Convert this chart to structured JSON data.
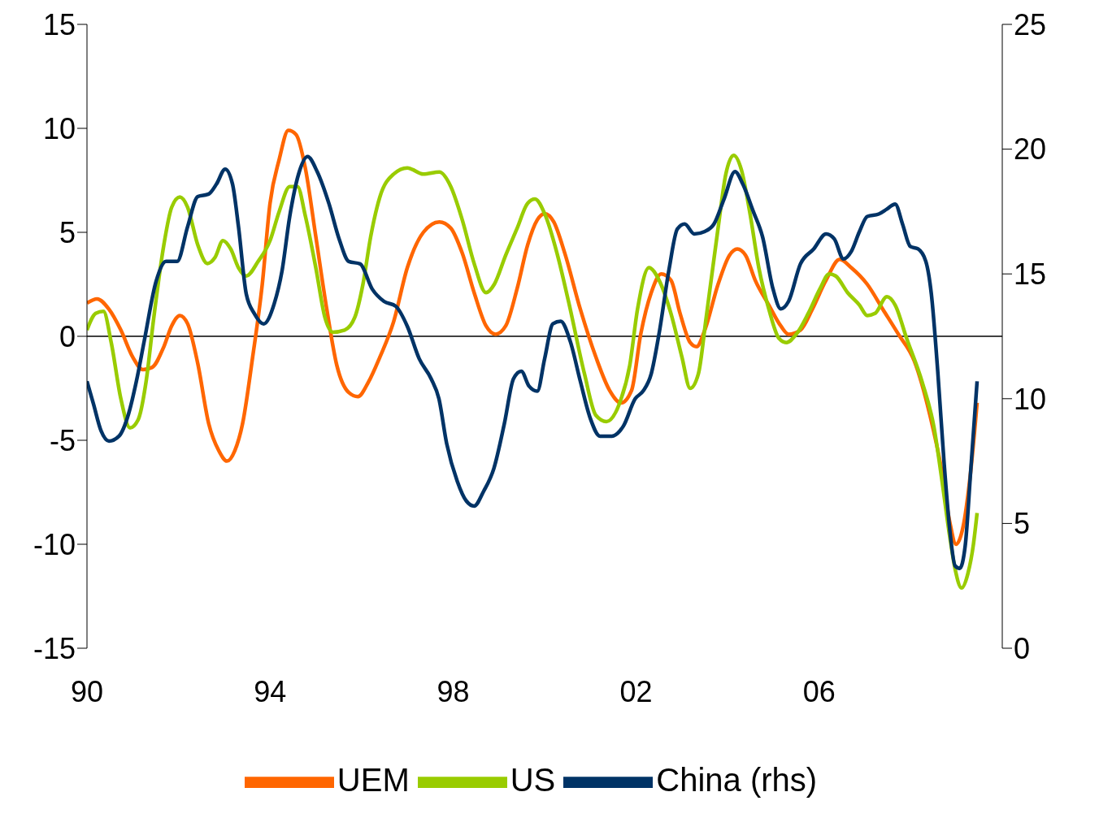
{
  "chart_data": {
    "type": "line",
    "xlim": [
      1990,
      2010
    ],
    "xticks": [
      {
        "value": 1990,
        "label": "90"
      },
      {
        "value": 1994,
        "label": "94"
      },
      {
        "value": 1998,
        "label": "98"
      },
      {
        "value": 2002,
        "label": "02"
      },
      {
        "value": 2006,
        "label": "06"
      }
    ],
    "ylim": [
      -15,
      15
    ],
    "yticks": [
      -15,
      -10,
      -5,
      0,
      5,
      10,
      15
    ],
    "y2lim": [
      0,
      25
    ],
    "y2ticks": [
      0,
      5,
      10,
      15,
      20,
      25
    ],
    "legend": "bottom",
    "marker": "none",
    "line_style": "solid",
    "ref_lines": [
      {
        "axis": "y",
        "value": 0,
        "color": "#000000"
      }
    ],
    "series": [
      {
        "name": "UEM",
        "color": "#ff6600",
        "x": [
          1990.0,
          1990.22,
          1990.48,
          1990.74,
          1991.0,
          1991.22,
          1991.42,
          1991.68,
          1991.85,
          1992.03,
          1992.2,
          1992.42,
          1992.66,
          1992.88,
          1993.06,
          1993.23,
          1993.4,
          1993.62,
          1993.83,
          1994.0,
          1994.2,
          1994.4,
          1994.57,
          1994.77,
          1995.0,
          1995.24,
          1995.46,
          1995.72,
          1995.92,
          1996.15,
          1996.4,
          1996.7,
          1997.0,
          1997.35,
          1997.7,
          1997.95,
          1998.2,
          1998.46,
          1998.72,
          1998.93,
          1999.15,
          1999.4,
          1999.63,
          1999.84,
          2000.0,
          2000.2,
          2000.44,
          2000.78,
          2001.12,
          2001.42,
          2001.67,
          2001.9,
          2002.1,
          2002.33,
          2002.55,
          2002.76,
          2002.96,
          2003.18,
          2003.32,
          2003.5,
          2003.79,
          2004.04,
          2004.21,
          2004.39,
          2004.6,
          2004.9,
          2005.16,
          2005.33,
          2005.59,
          2005.85,
          2006.15,
          2006.45,
          2006.7,
          2007.05,
          2007.39,
          2007.73,
          2008.08,
          2008.42,
          2008.68,
          2008.85,
          2008.99,
          2009.14,
          2009.31,
          2009.45
        ],
        "values": [
          1.6,
          1.8,
          1.3,
          0.3,
          -1.0,
          -1.6,
          -1.5,
          -0.5,
          0.5,
          1.0,
          0.6,
          -1.3,
          -4.2,
          -5.5,
          -6.0,
          -5.5,
          -4.2,
          -1.0,
          2.5,
          6.4,
          8.5,
          9.9,
          9.7,
          8.1,
          4.8,
          1.3,
          -1.4,
          -2.7,
          -2.9,
          -2.2,
          -1.0,
          0.7,
          3.3,
          5.0,
          5.5,
          5.2,
          4.0,
          2.1,
          0.5,
          0.1,
          0.5,
          2.3,
          4.4,
          5.6,
          5.9,
          5.5,
          4.0,
          1.3,
          -1.0,
          -2.6,
          -3.2,
          -2.6,
          0.1,
          2.1,
          3.0,
          2.7,
          1.1,
          -0.3,
          -0.5,
          0.3,
          2.5,
          3.9,
          4.2,
          3.9,
          2.7,
          1.5,
          0.5,
          0.1,
          0.3,
          1.3,
          2.7,
          3.7,
          3.3,
          2.5,
          1.3,
          0.1,
          -1.2,
          -3.8,
          -6.5,
          -8.9,
          -10.0,
          -9.2,
          -6.5,
          -3.2
        ]
      },
      {
        "name": "US",
        "color": "#99cc00",
        "x": [
          1990.0,
          1990.19,
          1990.36,
          1990.53,
          1990.74,
          1990.94,
          1991.12,
          1991.29,
          1991.46,
          1991.68,
          1991.85,
          1992.03,
          1992.2,
          1992.42,
          1992.63,
          1992.8,
          1992.97,
          1993.14,
          1993.31,
          1993.48,
          1993.74,
          1994.0,
          1994.2,
          1994.43,
          1994.6,
          1994.77,
          1995.0,
          1995.2,
          1995.37,
          1995.63,
          1995.85,
          1996.03,
          1996.2,
          1996.4,
          1996.7,
          1997.0,
          1997.35,
          1997.7,
          1997.95,
          1998.2,
          1998.46,
          1998.72,
          1998.9,
          1999.15,
          1999.4,
          1999.63,
          1999.79,
          2000.0,
          2000.27,
          2000.52,
          2000.87,
          2001.12,
          2001.35,
          2001.64,
          2001.86,
          2002.03,
          2002.28,
          2002.5,
          2002.76,
          2003.0,
          2003.18,
          2003.36,
          2003.53,
          2003.79,
          2003.96,
          2004.13,
          2004.3,
          2004.48,
          2004.68,
          2004.9,
          2005.12,
          2005.28,
          2005.5,
          2005.76,
          2006.02,
          2006.22,
          2006.36,
          2006.62,
          2006.88,
          2007.05,
          2007.22,
          2007.48,
          2007.66,
          2007.91,
          2008.25,
          2008.51,
          2008.68,
          2008.85,
          2008.97,
          2009.11,
          2009.25,
          2009.37,
          2009.45
        ],
        "values": [
          0.3,
          1.1,
          1.2,
          -0.3,
          -3.0,
          -4.4,
          -4.0,
          -2.2,
          0.9,
          4.4,
          6.2,
          6.7,
          6.2,
          4.4,
          3.5,
          3.8,
          4.6,
          4.2,
          3.3,
          2.9,
          3.6,
          4.6,
          6.0,
          7.2,
          7.2,
          5.8,
          3.3,
          0.9,
          0.2,
          0.3,
          0.9,
          2.5,
          4.8,
          6.7,
          7.8,
          8.1,
          7.8,
          7.9,
          7.2,
          5.6,
          3.5,
          2.1,
          2.5,
          3.9,
          5.2,
          6.4,
          6.6,
          5.9,
          4.0,
          1.7,
          -1.8,
          -3.8,
          -4.1,
          -3.2,
          -1.4,
          1.3,
          3.3,
          2.7,
          1.1,
          -1.0,
          -2.5,
          -1.8,
          0.9,
          5.2,
          7.8,
          8.7,
          8.0,
          6.0,
          3.3,
          1.3,
          -0.1,
          -0.3,
          0.1,
          1.1,
          2.3,
          3.0,
          2.9,
          2.1,
          1.5,
          1.0,
          1.1,
          1.9,
          1.5,
          -0.1,
          -2.2,
          -4.4,
          -6.9,
          -9.6,
          -11.2,
          -12.1,
          -11.4,
          -10.0,
          -8.5
        ]
      },
      {
        "name": "China (rhs)",
        "color": "#003366",
        "axis": "y2",
        "x": [
          1990.0,
          1990.14,
          1990.31,
          1990.48,
          1990.7,
          1990.91,
          1991.08,
          1991.25,
          1991.51,
          1991.73,
          1991.97,
          1992.2,
          1992.42,
          1992.66,
          1992.83,
          1993.02,
          1993.18,
          1993.31,
          1993.48,
          1993.66,
          1993.86,
          1994.09,
          1994.26,
          1994.43,
          1994.64,
          1994.82,
          1995.03,
          1995.29,
          1995.51,
          1995.72,
          1995.97,
          1996.23,
          1996.49,
          1996.75,
          1997.0,
          1997.26,
          1997.52,
          1997.69,
          1997.86,
          1998.09,
          1998.29,
          1998.46,
          1998.67,
          1998.89,
          1999.12,
          1999.32,
          1999.49,
          1999.66,
          1999.84,
          2000.0,
          2000.18,
          2000.35,
          2000.56,
          2000.78,
          2001.0,
          2001.21,
          2001.47,
          2001.72,
          2001.98,
          2002.15,
          2002.33,
          2002.5,
          2002.72,
          2002.9,
          2003.06,
          2003.27,
          2003.5,
          2003.7,
          2003.92,
          2004.16,
          2004.33,
          2004.56,
          2004.76,
          2004.99,
          2005.16,
          2005.33,
          2005.59,
          2005.88,
          2006.15,
          2006.33,
          2006.53,
          2006.7,
          2006.88,
          2007.05,
          2007.3,
          2007.48,
          2007.66,
          2007.82,
          2007.99,
          2008.16,
          2008.33,
          2008.45,
          2008.59,
          2008.73,
          2008.85,
          2008.97,
          2009.07,
          2009.19,
          2009.31,
          2009.45
        ],
        "values": [
          10.7,
          9.8,
          8.7,
          8.3,
          8.5,
          9.4,
          10.7,
          12.3,
          14.7,
          15.5,
          15.5,
          16.9,
          18.1,
          18.2,
          18.6,
          19.2,
          18.6,
          16.9,
          14.2,
          13.4,
          13.0,
          13.8,
          15.1,
          17.3,
          19.1,
          19.7,
          19.1,
          17.8,
          16.4,
          15.5,
          15.4,
          14.4,
          13.9,
          13.7,
          12.9,
          11.6,
          10.8,
          10.0,
          8.2,
          6.7,
          5.9,
          5.7,
          6.3,
          7.2,
          9.0,
          10.8,
          11.1,
          10.5,
          10.3,
          11.6,
          13.0,
          13.1,
          12.3,
          10.7,
          9.2,
          8.5,
          8.5,
          8.9,
          10.0,
          10.3,
          11.0,
          12.6,
          15.2,
          16.8,
          17.0,
          16.6,
          16.7,
          17.0,
          18.0,
          19.1,
          18.6,
          17.5,
          16.5,
          14.4,
          13.6,
          13.9,
          15.4,
          16.0,
          16.6,
          16.4,
          15.6,
          15.9,
          16.7,
          17.3,
          17.4,
          17.6,
          17.8,
          17.0,
          16.1,
          16.0,
          15.5,
          14.2,
          11.1,
          7.4,
          4.8,
          3.3,
          3.2,
          4.1,
          7.1,
          10.7
        ]
      }
    ]
  }
}
